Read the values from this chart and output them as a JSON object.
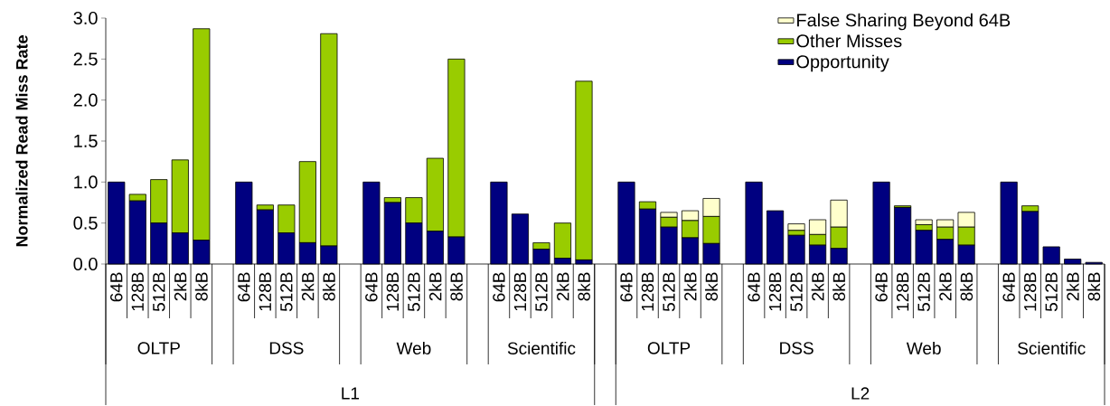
{
  "chart_data": {
    "type": "bar",
    "stacked": true,
    "ylabel": "Normalized Read Miss Rate",
    "categories": [
      "64B",
      "128B",
      "512B",
      "2kB",
      "8kB",
      "64B",
      "128B",
      "512B",
      "2kB",
      "8kB",
      "64B",
      "128B",
      "512B",
      "2kB",
      "8kB",
      "64B",
      "128B",
      "512B",
      "2kB",
      "8kB",
      "64B",
      "128B",
      "512B",
      "2kB",
      "8kB",
      "64B",
      "128B",
      "512B",
      "2kB",
      "8kB",
      "64B",
      "128B",
      "512B",
      "2kB",
      "8kB",
      "64B",
      "128B",
      "512B",
      "2kB",
      "8kB"
    ],
    "series": [
      {
        "name": "Opportunity",
        "color": "#000080",
        "values": [
          1.0,
          0.77,
          0.5,
          0.38,
          0.29,
          1.0,
          0.66,
          0.38,
          0.26,
          0.22,
          1.0,
          0.75,
          0.5,
          0.4,
          0.33,
          1.0,
          0.61,
          0.18,
          0.07,
          0.05,
          1.0,
          0.67,
          0.45,
          0.32,
          0.25,
          1.0,
          0.65,
          0.35,
          0.23,
          0.19,
          1.0,
          0.69,
          0.41,
          0.3,
          0.23,
          1.0,
          0.64,
          0.21,
          0.06,
          0.02
        ]
      },
      {
        "name": "Other Misses",
        "color": "#99cc00",
        "values": [
          null,
          0.08,
          0.53,
          0.89,
          2.58,
          null,
          0.06,
          0.34,
          0.99,
          2.59,
          null,
          0.06,
          0.31,
          0.89,
          2.17,
          null,
          null,
          0.08,
          0.43,
          2.18,
          null,
          0.09,
          0.12,
          0.21,
          0.33,
          null,
          null,
          0.06,
          0.13,
          0.26,
          null,
          0.02,
          0.07,
          0.15,
          0.22,
          null,
          0.07,
          null,
          null,
          null
        ]
      },
      {
        "name": "False Sharing Beyond 64B",
        "color": "#ffffcc",
        "values": [
          null,
          null,
          null,
          null,
          null,
          null,
          null,
          null,
          null,
          null,
          null,
          null,
          null,
          null,
          null,
          null,
          null,
          null,
          null,
          null,
          null,
          null,
          0.06,
          0.12,
          0.22,
          null,
          null,
          0.08,
          0.18,
          0.33,
          null,
          null,
          0.06,
          0.09,
          0.18,
          null,
          null,
          null,
          null,
          null
        ]
      }
    ],
    "ylim": [
      0,
      3.0
    ],
    "yticks": [
      {
        "value": 0,
        "label": "0.0"
      },
      {
        "value": 0.5,
        "label": "0.5"
      },
      {
        "value": 1.0,
        "label": "1.0"
      },
      {
        "value": 1.5,
        "label": "1.5"
      },
      {
        "value": 2.0,
        "label": "2.0"
      },
      {
        "value": 2.5,
        "label": "2.5"
      },
      {
        "value": 3.0,
        "label": "3.0"
      }
    ],
    "legend": "top right",
    "annotations": [
      "OLTP",
      "DSS",
      "Web",
      "Scientific",
      "OLTP",
      "DSS",
      "Web",
      "Scientific",
      "L1",
      "L2"
    ]
  }
}
